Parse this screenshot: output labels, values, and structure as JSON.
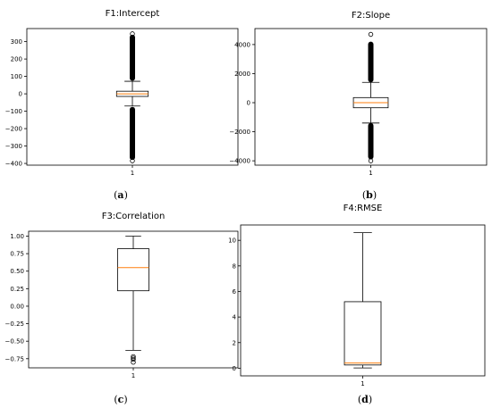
{
  "chart_data": [
    {
      "type": "boxplot",
      "title": "F1:Intercept",
      "caption_letter": "a",
      "categories": [
        "1"
      ],
      "ylim": [
        -410,
        375
      ],
      "yticks": [
        300,
        200,
        100,
        0,
        -100,
        -200,
        -300,
        -400
      ],
      "ytick_labels": [
        "300",
        "200",
        "100",
        "0",
        "−100",
        "−200",
        "−300",
        "−400"
      ],
      "box": {
        "whisker_low": -70,
        "q1": -15,
        "median": 0,
        "q3": 15,
        "whisker_high": 72
      },
      "outlier_bands": [
        [
          75,
          340
        ],
        [
          -380,
          -75
        ]
      ],
      "outliers": [
        345,
        -385,
        -350,
        -340
      ],
      "grid": false
    },
    {
      "type": "boxplot",
      "title": "F2:Slope",
      "caption_letter": "b",
      "categories": [
        "1"
      ],
      "ylim": [
        -4300,
        5100
      ],
      "yticks": [
        4000,
        2000,
        0,
        -2000,
        -4000
      ],
      "ytick_labels": [
        "4000",
        "2000",
        "0",
        "−2000",
        "−4000"
      ],
      "box": {
        "whisker_low": -1400,
        "q1": -350,
        "median": 0,
        "q3": 350,
        "whisker_high": 1400
      },
      "outlier_bands": [
        [
          1400,
          4200
        ],
        [
          -3900,
          -1400
        ]
      ],
      "outliers": [
        4700,
        -4000
      ],
      "grid": false
    },
    {
      "type": "boxplot",
      "title": "F3:Correlation",
      "caption_letter": "c",
      "categories": [
        "1"
      ],
      "ylim": [
        -0.88,
        1.07
      ],
      "yticks": [
        1.0,
        0.75,
        0.5,
        0.25,
        0.0,
        -0.25,
        -0.5,
        -0.75
      ],
      "ytick_labels": [
        "1.00",
        "0.75",
        "0.50",
        "0.25",
        "0.00",
        "−0.25",
        "−0.50",
        "−0.75"
      ],
      "box": {
        "whisker_low": -0.63,
        "q1": 0.22,
        "median": 0.55,
        "q3": 0.82,
        "whisker_high": 1.0
      },
      "outlier_bands": [],
      "outliers": [
        -0.72,
        -0.74,
        -0.76,
        -0.8
      ],
      "grid": false
    },
    {
      "type": "boxplot",
      "title": "F4:RMSE",
      "caption_letter": "d",
      "categories": [
        "1"
      ],
      "ylim": [
        -0.6,
        11.2
      ],
      "yticks": [
        10,
        8,
        6,
        4,
        2,
        0
      ],
      "ytick_labels": [
        "10",
        "8",
        "6",
        "4",
        "2",
        "0"
      ],
      "box": {
        "whisker_low": 0.02,
        "q1": 0.25,
        "median": 0.4,
        "q3": 5.2,
        "whisker_high": 10.6
      },
      "outlier_bands": [],
      "outliers": [],
      "grid": false
    }
  ],
  "colors": {
    "median": "#ff7f0e",
    "box": "#000000",
    "background": "#ffffff"
  }
}
